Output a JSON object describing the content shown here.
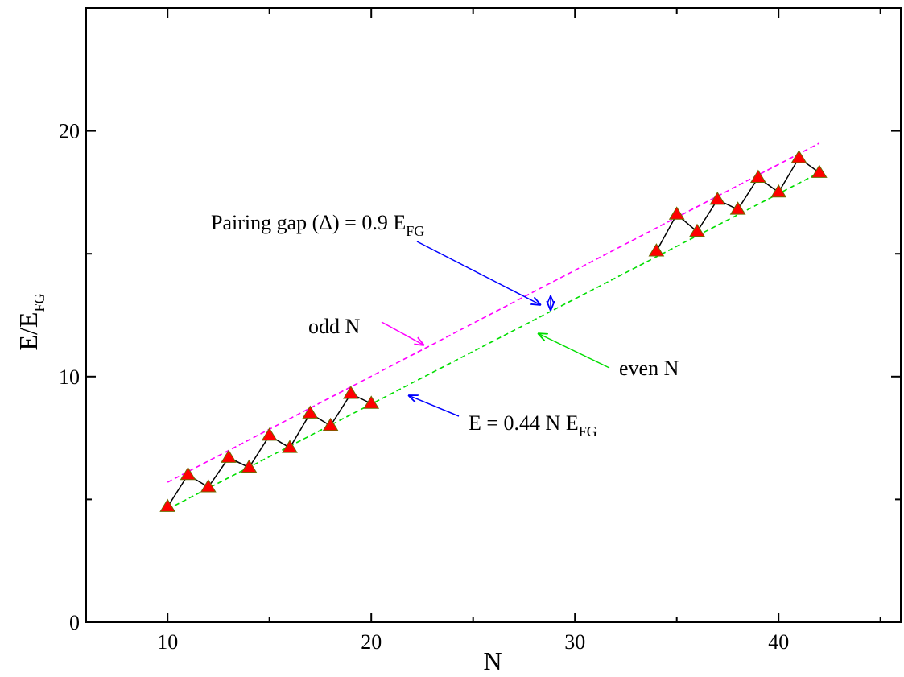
{
  "chart_data": {
    "type": "scatter",
    "title": "",
    "xlabel": "N",
    "ylabel": {
      "main": "E/E",
      "sub": "FG"
    },
    "xlim": [
      6,
      46
    ],
    "ylim": [
      0,
      25
    ],
    "x_ticks": [
      10,
      20,
      30,
      40
    ],
    "y_ticks": [
      0,
      10,
      20
    ],
    "x_tick_labels": [
      "10",
      "20",
      "30",
      "40"
    ],
    "y_tick_labels": [
      "0",
      "10",
      "20"
    ],
    "grid": false,
    "legend": "none",
    "series": [
      {
        "marker": "triangle",
        "color": "#ff0000",
        "connect": true,
        "points": [
          {
            "x": 10,
            "y": 4.7
          },
          {
            "x": 11,
            "y": 6.0
          },
          {
            "x": 12,
            "y": 5.5
          },
          {
            "x": 13,
            "y": 6.7
          },
          {
            "x": 14,
            "y": 6.3
          },
          {
            "x": 15,
            "y": 7.6
          },
          {
            "x": 16,
            "y": 7.1
          },
          {
            "x": 17,
            "y": 8.5
          },
          {
            "x": 18,
            "y": 8.0
          },
          {
            "x": 19,
            "y": 9.3
          },
          {
            "x": 20,
            "y": 8.9
          }
        ]
      },
      {
        "marker": "triangle",
        "color": "#ff0000",
        "connect": true,
        "points": [
          {
            "x": 34,
            "y": 15.1
          },
          {
            "x": 35,
            "y": 16.6
          },
          {
            "x": 36,
            "y": 15.9
          },
          {
            "x": 37,
            "y": 17.2
          },
          {
            "x": 38,
            "y": 16.8
          },
          {
            "x": 39,
            "y": 18.1
          },
          {
            "x": 40,
            "y": 17.5
          },
          {
            "x": 41,
            "y": 18.9
          },
          {
            "x": 42,
            "y": 18.3
          }
        ]
      }
    ],
    "fit_lines": [
      {
        "color": "#ff00ff",
        "dashed": true,
        "x": [
          10,
          42
        ],
        "y": [
          5.7,
          19.5
        ]
      },
      {
        "color": "#00dd00",
        "dashed": true,
        "x": [
          10,
          42
        ],
        "y": [
          4.6,
          18.3
        ]
      }
    ],
    "annotations": {
      "pairing_gap": {
        "main": "Pairing gap (Δ) = 0.9 E",
        "sub": "FG",
        "color": "#000000"
      },
      "odd": {
        "text": "odd N",
        "color": "#ff00ff"
      },
      "even": {
        "text": "even N",
        "color": "#00dd00"
      },
      "fit": {
        "main": "E = 0.44 N E",
        "sub": "FG",
        "color": "#000000"
      }
    },
    "arrow_colors": {
      "blue": "#0000ff",
      "magenta": "#ff00ff",
      "green": "#00dd00"
    }
  }
}
